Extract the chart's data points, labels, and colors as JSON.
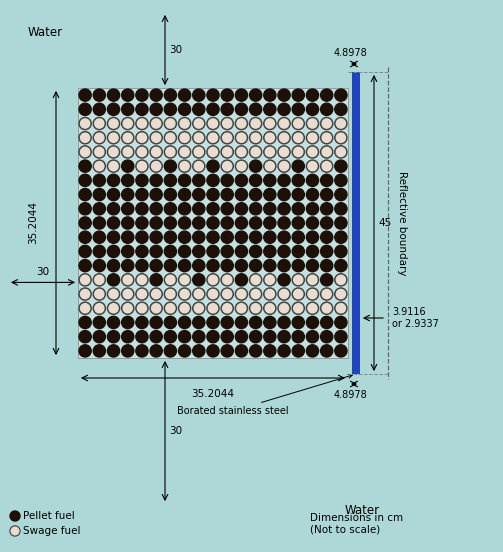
{
  "bg_color": "#aed8d8",
  "grid_bg_color": "#c5e0e0",
  "n_rows": 19,
  "n_cols": 19,
  "pellet_color": "#1c1008",
  "swage_color": "#e8ddd0",
  "swage_ring_color": "#444444",
  "bss_color": "#2244bb",
  "dim_water_top": "30",
  "dim_water_left": "30",
  "dim_water_bottom": "30",
  "dim_core_width": "35.2044",
  "dim_core_height": "35.2044",
  "dim_bss_width_top": "4.8978",
  "dim_bss_width_bottom": "4.8978",
  "dim_total_height": "45",
  "dim_bss_thickness": "3.9116\nor 2.9337",
  "label_water_top": "Water",
  "label_water_bottom": "Water",
  "label_refl": "Reflective boundary",
  "label_bss": "Borated stainless steel",
  "label_pellet": "Pellet fuel",
  "label_swage": "Swage fuel",
  "label_dims": "Dimensions in cm\n(Not to scale)",
  "font_size": 7.5,
  "pattern": [
    [
      1,
      1,
      1,
      1,
      1,
      1,
      1,
      1,
      1,
      1,
      1,
      1,
      1,
      1,
      1,
      1,
      1,
      1,
      1
    ],
    [
      1,
      1,
      1,
      1,
      1,
      1,
      1,
      1,
      1,
      1,
      1,
      1,
      1,
      1,
      1,
      1,
      1,
      1,
      1
    ],
    [
      0,
      0,
      0,
      0,
      0,
      0,
      0,
      0,
      0,
      0,
      0,
      0,
      0,
      0,
      0,
      0,
      0,
      0,
      0
    ],
    [
      0,
      0,
      0,
      0,
      0,
      0,
      0,
      0,
      0,
      0,
      0,
      0,
      0,
      0,
      0,
      0,
      0,
      0,
      0
    ],
    [
      0,
      0,
      0,
      0,
      0,
      0,
      0,
      0,
      0,
      0,
      0,
      0,
      0,
      0,
      0,
      0,
      0,
      0,
      0
    ],
    [
      1,
      0,
      0,
      1,
      0,
      0,
      1,
      0,
      0,
      1,
      0,
      0,
      1,
      0,
      0,
      1,
      0,
      0,
      1
    ],
    [
      1,
      1,
      1,
      1,
      1,
      1,
      1,
      1,
      1,
      1,
      1,
      1,
      1,
      1,
      1,
      1,
      1,
      1,
      1
    ],
    [
      1,
      1,
      1,
      1,
      1,
      1,
      1,
      1,
      1,
      1,
      1,
      1,
      1,
      1,
      1,
      1,
      1,
      1,
      1
    ],
    [
      1,
      1,
      1,
      1,
      1,
      1,
      1,
      1,
      1,
      1,
      1,
      1,
      1,
      1,
      1,
      1,
      1,
      1,
      1
    ],
    [
      1,
      1,
      1,
      1,
      1,
      1,
      1,
      1,
      1,
      1,
      1,
      1,
      1,
      1,
      1,
      1,
      1,
      1,
      1
    ],
    [
      1,
      1,
      1,
      1,
      1,
      1,
      1,
      1,
      1,
      1,
      1,
      1,
      1,
      1,
      1,
      1,
      1,
      1,
      1
    ],
    [
      1,
      1,
      1,
      1,
      1,
      1,
      1,
      1,
      1,
      1,
      1,
      1,
      1,
      1,
      1,
      1,
      1,
      1,
      1
    ],
    [
      1,
      1,
      1,
      1,
      1,
      1,
      1,
      1,
      1,
      1,
      1,
      1,
      1,
      1,
      1,
      1,
      1,
      1,
      1
    ],
    [
      0,
      0,
      1,
      0,
      0,
      1,
      0,
      0,
      1,
      0,
      0,
      1,
      0,
      0,
      1,
      0,
      0,
      1,
      0
    ],
    [
      0,
      0,
      0,
      0,
      0,
      0,
      0,
      0,
      0,
      0,
      0,
      0,
      0,
      0,
      0,
      0,
      0,
      0,
      0
    ],
    [
      0,
      0,
      0,
      0,
      0,
      0,
      0,
      0,
      0,
      0,
      0,
      0,
      0,
      0,
      0,
      0,
      0,
      0,
      0
    ],
    [
      1,
      1,
      1,
      1,
      1,
      1,
      1,
      1,
      1,
      1,
      1,
      1,
      1,
      1,
      1,
      1,
      1,
      1,
      1
    ],
    [
      1,
      1,
      1,
      1,
      1,
      1,
      1,
      1,
      1,
      1,
      1,
      1,
      1,
      1,
      1,
      1,
      1,
      1,
      1
    ],
    [
      1,
      1,
      1,
      1,
      1,
      1,
      1,
      1,
      1,
      1,
      1,
      1,
      1,
      1,
      1,
      1,
      1,
      1,
      1
    ]
  ]
}
